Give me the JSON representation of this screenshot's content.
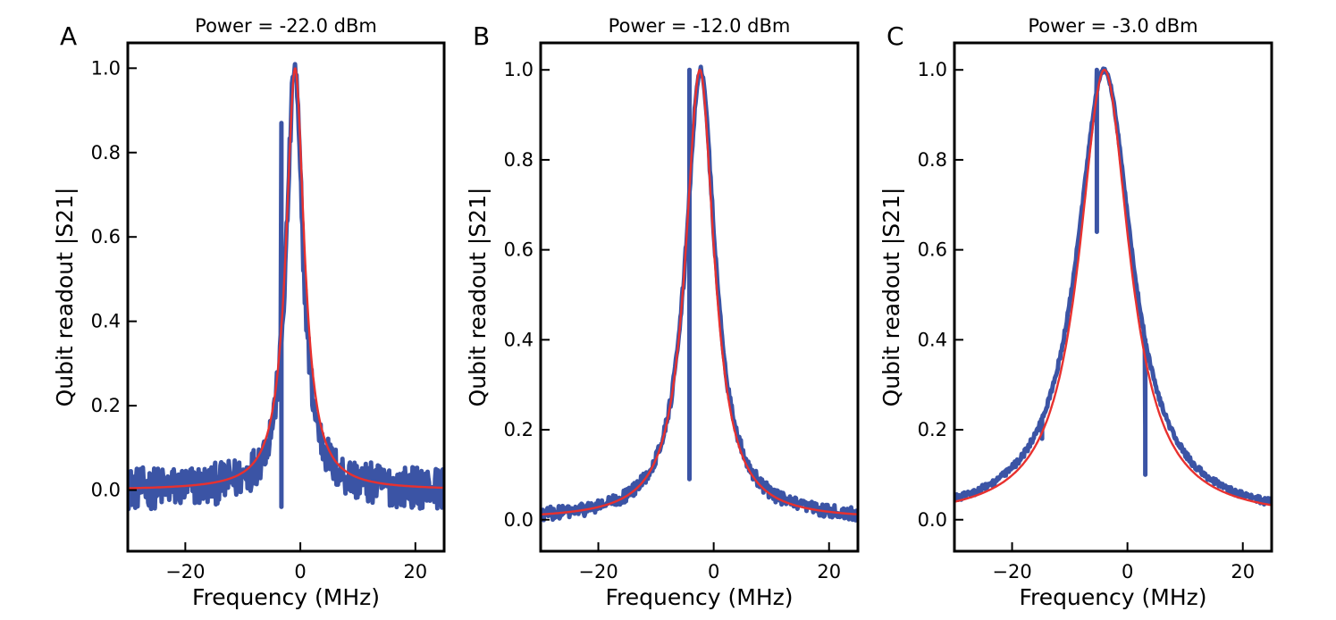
{
  "chart_data": [
    {
      "type": "line",
      "panel_label": "A",
      "title": "Power = -22.0 dBm",
      "xlabel": "Frequency (MHz)",
      "ylabel": "Qubit readout |S21|",
      "xlim": [
        -30,
        25
      ],
      "ylim": [
        -0.145,
        1.06
      ],
      "xticks": [
        -20,
        0,
        20
      ],
      "yticks": [
        0.0,
        0.2,
        0.4,
        0.6,
        0.8,
        1.0
      ],
      "xtick_labels": [
        "−20",
        "0",
        "20"
      ],
      "ytick_labels": [
        "0.0",
        "0.2",
        "0.4",
        "0.6",
        "0.8",
        "1.0"
      ],
      "grid": false,
      "legend": "none",
      "series": [
        {
          "role": "measured",
          "color": "#3b54a5",
          "center": -1.0,
          "hwhm": 1.7,
          "noise_amplitude": 0.05,
          "spikes": [
            {
              "x": -3.3,
              "top": 0.87,
              "bottom": -0.04
            }
          ]
        },
        {
          "role": "fit",
          "color": "#e8312f",
          "center": -0.9,
          "hwhm": 1.9
        }
      ]
    },
    {
      "type": "line",
      "panel_label": "B",
      "title": "Power = -12.0 dBm",
      "xlabel": "Frequency (MHz)",
      "ylabel": "Qubit readout |S21|",
      "xlim": [
        -30,
        25
      ],
      "ylim": [
        -0.07,
        1.06
      ],
      "xticks": [
        -20,
        0,
        20
      ],
      "yticks": [
        0.0,
        0.2,
        0.4,
        0.6,
        0.8,
        1.0
      ],
      "xtick_labels": [
        "−20",
        "0",
        "20"
      ],
      "ytick_labels": [
        "0.0",
        "0.2",
        "0.4",
        "0.6",
        "0.8",
        "1.0"
      ],
      "grid": false,
      "legend": "none",
      "series": [
        {
          "role": "measured",
          "color": "#3b54a5",
          "center": -2.3,
          "hwhm": 3.1,
          "noise_amplitude": 0.015,
          "spikes": [
            {
              "x": -4.2,
              "top": 1.0,
              "bottom": 0.09
            }
          ]
        },
        {
          "role": "fit",
          "color": "#e8312f",
          "center": -2.4,
          "hwhm": 3.0
        }
      ]
    },
    {
      "type": "line",
      "panel_label": "C",
      "title": "Power = -3.0 dBm",
      "xlabel": "Frequency (MHz)",
      "ylabel": "Qubit readout |S21|",
      "xlim": [
        -30,
        25
      ],
      "ylim": [
        -0.07,
        1.06
      ],
      "xticks": [
        -20,
        0,
        20
      ],
      "yticks": [
        0.0,
        0.2,
        0.4,
        0.6,
        0.8,
        1.0
      ],
      "xtick_labels": [
        "−20",
        "0",
        "20"
      ],
      "ytick_labels": [
        "0.0",
        "0.2",
        "0.4",
        "0.6",
        "0.8",
        "1.0"
      ],
      "grid": false,
      "legend": "none",
      "series": [
        {
          "role": "measured",
          "color": "#3b54a5",
          "center": -4.0,
          "hwhm": 5.8,
          "noise_amplitude": 0.008,
          "spikes": [
            {
              "x": -5.3,
              "top": 1.0,
              "bottom": 0.64
            },
            {
              "x": 3.1,
              "top": 0.2,
              "bottom": 0.1
            },
            {
              "x": -14.8,
              "top": 0.22,
              "bottom": 0.18
            }
          ]
        },
        {
          "role": "fit",
          "color": "#e8312f",
          "center": -4.0,
          "hwhm": 5.3
        }
      ]
    }
  ]
}
